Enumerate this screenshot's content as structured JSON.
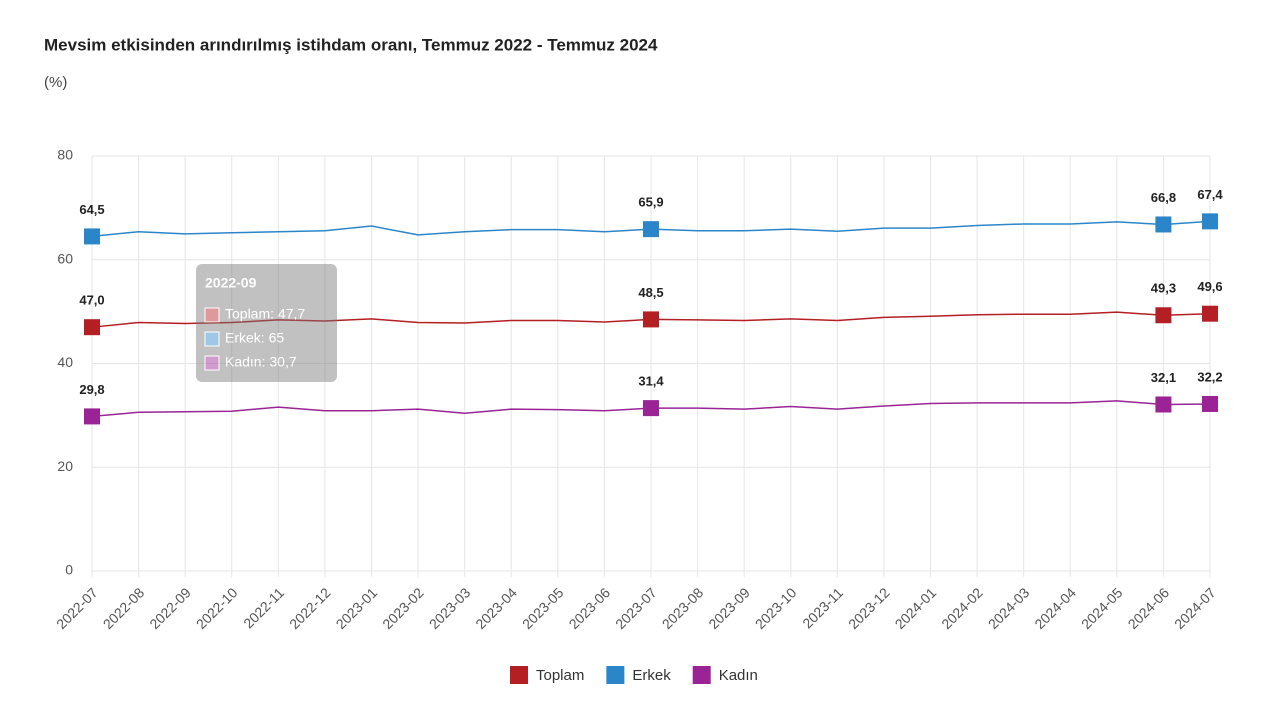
{
  "chart_data": {
    "type": "line",
    "title": "Mevsim etkisinden arındırılmış istihdam oranı, Temmuz 2022 - Temmuz 2024",
    "subtitle": "(%)",
    "categories": [
      "2022-07",
      "2022-08",
      "2022-09",
      "2022-10",
      "2022-11",
      "2022-12",
      "2023-01",
      "2023-02",
      "2023-03",
      "2023-04",
      "2023-05",
      "2023-06",
      "2023-07",
      "2023-08",
      "2023-09",
      "2023-10",
      "2023-11",
      "2023-12",
      "2024-01",
      "2024-02",
      "2024-03",
      "2024-04",
      "2024-05",
      "2024-06",
      "2024-07"
    ],
    "series": [
      {
        "name": "Toplam",
        "color": "#b41f24",
        "values": [
          47.0,
          47.9,
          47.7,
          47.9,
          48.4,
          48.2,
          48.6,
          47.9,
          47.8,
          48.3,
          48.3,
          48.0,
          48.5,
          48.4,
          48.3,
          48.6,
          48.3,
          48.9,
          49.1,
          49.4,
          49.5,
          49.5,
          49.9,
          49.3,
          49.6
        ],
        "value_labels": [
          "47,0",
          null,
          null,
          null,
          null,
          null,
          null,
          null,
          null,
          null,
          null,
          null,
          "48,5",
          null,
          null,
          null,
          null,
          null,
          null,
          null,
          null,
          null,
          null,
          "49,3",
          "49,6"
        ]
      },
      {
        "name": "Erkek",
        "color": "#2a86c8",
        "values": [
          64.5,
          65.4,
          65.0,
          65.2,
          65.4,
          65.6,
          66.5,
          64.8,
          65.4,
          65.8,
          65.8,
          65.4,
          65.9,
          65.6,
          65.6,
          65.9,
          65.5,
          66.1,
          66.1,
          66.6,
          66.9,
          66.9,
          67.3,
          66.8,
          67.4
        ],
        "value_labels": [
          "64,5",
          null,
          null,
          null,
          null,
          null,
          null,
          null,
          null,
          null,
          null,
          null,
          "65,9",
          null,
          null,
          null,
          null,
          null,
          null,
          null,
          null,
          null,
          null,
          "66,8",
          "67,4"
        ]
      },
      {
        "name": "Kadın",
        "color": "#9a2496",
        "values": [
          29.8,
          30.6,
          30.7,
          30.8,
          31.6,
          30.9,
          30.9,
          31.2,
          30.4,
          31.2,
          31.1,
          30.9,
          31.4,
          31.4,
          31.2,
          31.7,
          31.2,
          31.8,
          32.3,
          32.4,
          32.4,
          32.4,
          32.8,
          32.1,
          32.2
        ],
        "value_labels": [
          "29,8",
          null,
          null,
          null,
          null,
          null,
          null,
          null,
          null,
          null,
          null,
          null,
          "31,4",
          null,
          null,
          null,
          null,
          null,
          null,
          null,
          null,
          null,
          null,
          "32,1",
          "32,2"
        ]
      }
    ],
    "ylim": [
      0,
      80
    ],
    "yticks": [
      0,
      20,
      40,
      60,
      80
    ],
    "grid": true,
    "tooltip": {
      "title": "2022-09",
      "items": [
        "Toplam: 47,7",
        "Erkek: 65",
        "Kadın: 30,7"
      ]
    }
  }
}
